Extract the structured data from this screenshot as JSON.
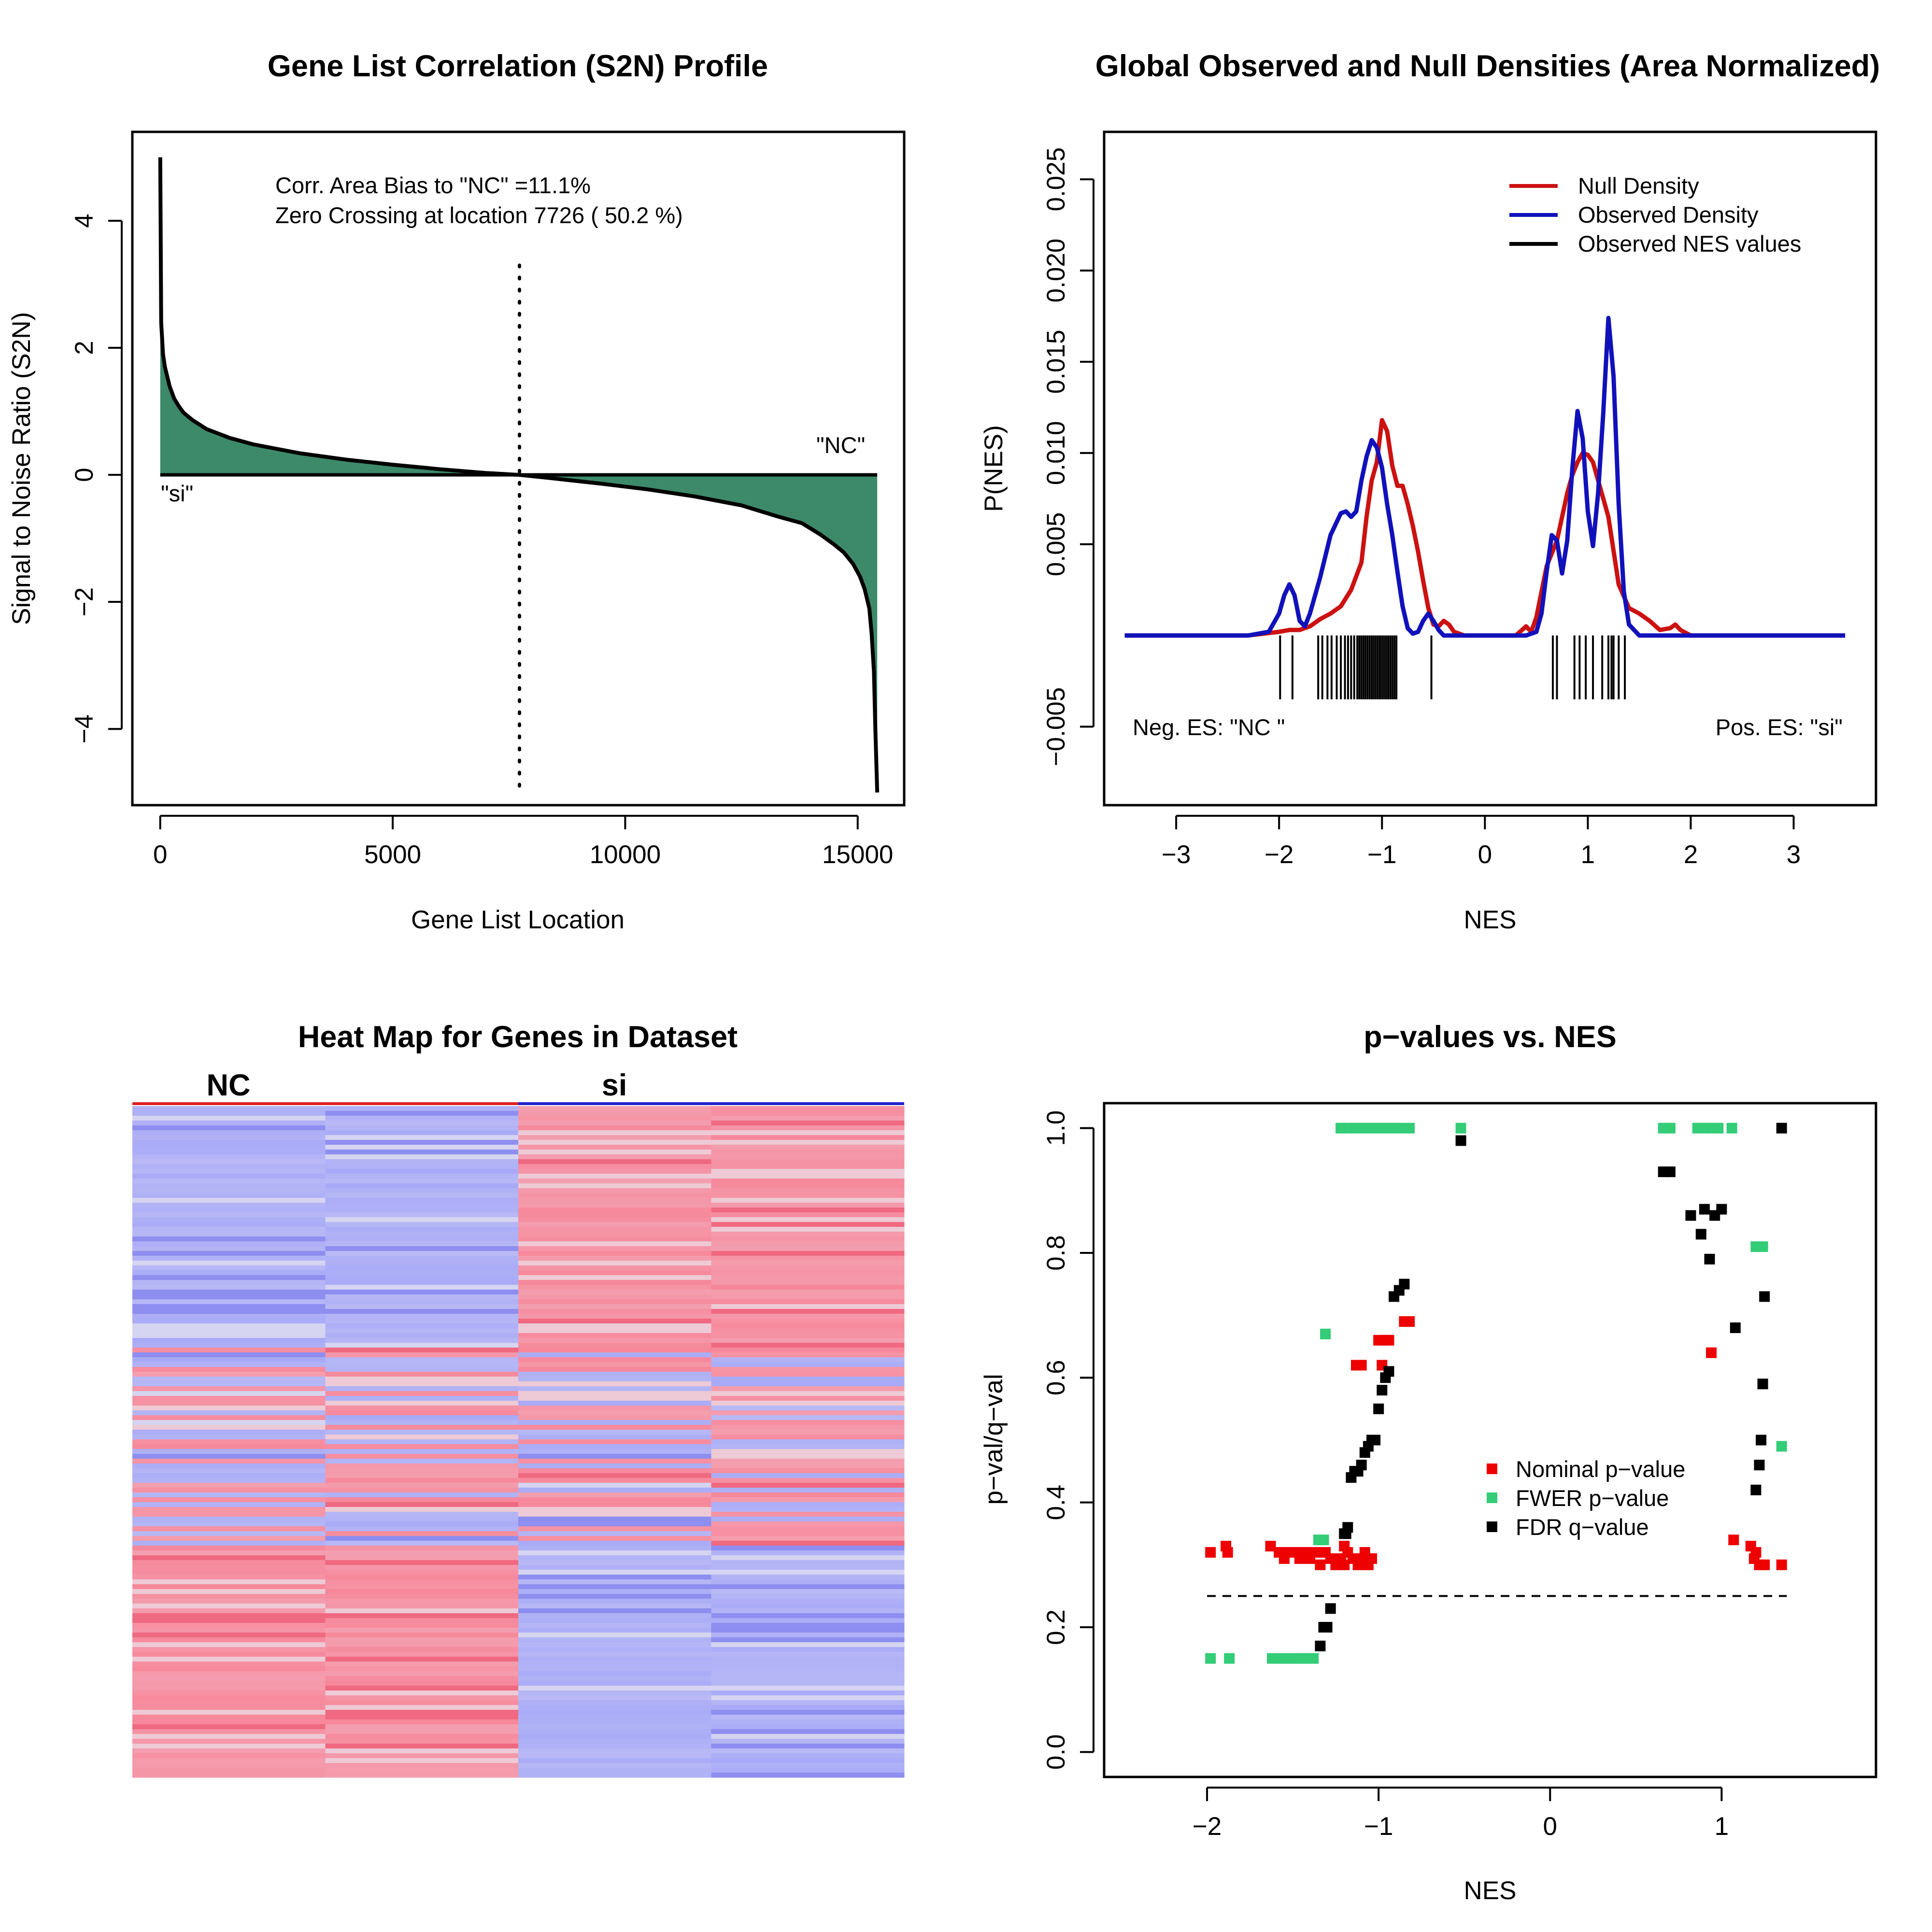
{
  "chart_data": [
    {
      "type": "area",
      "title": "Gene List Correlation (S2N) Profile",
      "xlabel": "Gene List Location",
      "ylabel": "Signal to Noise Ratio (S2N)",
      "xlim": [
        -600,
        16000
      ],
      "ylim": [
        -5.2,
        5.4
      ],
      "xticks": [
        0,
        5000,
        10000,
        15000
      ],
      "xtick_labels": [
        "0",
        "5000",
        "10000",
        "15000"
      ],
      "yticks": [
        -4,
        -2,
        0,
        2,
        4
      ],
      "ytick_labels": [
        "−4",
        "−2",
        "0",
        "2",
        "4"
      ],
      "annotations": [
        "Corr. Area Bias to \"NC\" =11.1%",
        "Zero Crossing at location  7726  ( 50.2  %)"
      ],
      "label_left": "\"si\"",
      "label_right": "\"NC\"",
      "zero_crossing": 7726,
      "fill_color": "#3d8a6b",
      "x": [
        0,
        20,
        60,
        100,
        150,
        200,
        300,
        400,
        500,
        700,
        1000,
        1500,
        2000,
        3000,
        4000,
        5000,
        6000,
        7000,
        7726,
        8500,
        9500,
        10500,
        11500,
        12500,
        13300,
        13800,
        14200,
        14500,
        14700,
        14900,
        15050,
        15150,
        15250,
        15300,
        15350,
        15380,
        15420
      ],
      "y": [
        5.0,
        2.4,
        1.9,
        1.7,
        1.55,
        1.4,
        1.2,
        1.08,
        0.98,
        0.86,
        0.72,
        0.58,
        0.48,
        0.34,
        0.24,
        0.16,
        0.09,
        0.03,
        0.0,
        -0.06,
        -0.14,
        -0.23,
        -0.34,
        -0.48,
        -0.66,
        -0.76,
        -0.94,
        -1.1,
        -1.22,
        -1.4,
        -1.6,
        -1.8,
        -2.1,
        -2.5,
        -3.1,
        -4.0,
        -5.0
      ]
    },
    {
      "type": "line",
      "title": "Global Observed and Null Densities (Area Normalized)",
      "xlabel": "NES",
      "ylabel": "P(NES)",
      "xlim": [
        -3.7,
        3.8
      ],
      "ylim": [
        -0.0093,
        0.0276
      ],
      "xticks": [
        -3,
        -2,
        -1,
        0,
        1,
        2,
        3
      ],
      "xtick_labels": [
        "−3",
        "−2",
        "−1",
        "0",
        "1",
        "2",
        "3"
      ],
      "yticks": [
        -0.005,
        0.005,
        0.01,
        0.015,
        0.02,
        0.025
      ],
      "ytick_labels": [
        "−0.005",
        "0.005",
        "0.010",
        "0.015",
        "0.020",
        "0.025"
      ],
      "label_left": "Neg. ES: \"NC \"",
      "label_right": "Pos. ES: \"si\"",
      "legend_position": "top-right",
      "series": [
        {
          "name": "Null Density",
          "color": "#cc1111",
          "x": [
            -3.5,
            -2.3,
            -2.0,
            -1.9,
            -1.8,
            -1.7,
            -1.6,
            -1.5,
            -1.4,
            -1.3,
            -1.2,
            -1.15,
            -1.1,
            -1.05,
            -1.0,
            -0.95,
            -0.9,
            -0.85,
            -0.8,
            -0.75,
            -0.7,
            -0.65,
            -0.6,
            -0.55,
            -0.5,
            -0.45,
            -0.4,
            -0.35,
            -0.3,
            -0.2,
            0.0,
            0.3,
            0.4,
            0.45,
            0.5,
            0.6,
            0.7,
            0.8,
            0.85,
            0.9,
            0.95,
            1.0,
            1.05,
            1.1,
            1.15,
            1.2,
            1.3,
            1.4,
            1.5,
            1.6,
            1.7,
            1.8,
            1.85,
            1.9,
            2.0,
            2.2,
            3.5
          ],
          "y": [
            0.0,
            0.0,
            0.0002,
            0.0003,
            0.0003,
            0.0005,
            0.0009,
            0.0012,
            0.0016,
            0.0025,
            0.004,
            0.0065,
            0.0085,
            0.0095,
            0.0118,
            0.0112,
            0.0093,
            0.0082,
            0.0082,
            0.0072,
            0.006,
            0.0046,
            0.003,
            0.0015,
            0.0006,
            0.0005,
            0.0008,
            0.0006,
            0.0002,
            0.0,
            0.0,
            0.0,
            0.0005,
            0.0002,
            0.001,
            0.0038,
            0.0052,
            0.0078,
            0.0088,
            0.0095,
            0.01,
            0.0099,
            0.0095,
            0.0085,
            0.0075,
            0.0065,
            0.0028,
            0.0015,
            0.0012,
            0.0008,
            0.0003,
            0.0004,
            0.0006,
            0.0003,
            0.0,
            0.0,
            0.0
          ]
        },
        {
          "name": "Observed Density",
          "color": "#1111bb",
          "x": [
            -3.5,
            -2.3,
            -2.1,
            -2.0,
            -1.95,
            -1.9,
            -1.85,
            -1.8,
            -1.75,
            -1.7,
            -1.6,
            -1.5,
            -1.4,
            -1.35,
            -1.3,
            -1.25,
            -1.2,
            -1.15,
            -1.1,
            -1.05,
            -1.0,
            -0.95,
            -0.9,
            -0.85,
            -0.8,
            -0.75,
            -0.7,
            -0.65,
            -0.6,
            -0.55,
            -0.5,
            -0.45,
            -0.4,
            -0.3,
            0.0,
            0.4,
            0.5,
            0.55,
            0.6,
            0.65,
            0.7,
            0.75,
            0.8,
            0.85,
            0.9,
            0.95,
            1.0,
            1.05,
            1.1,
            1.15,
            1.2,
            1.25,
            1.3,
            1.35,
            1.4,
            1.5,
            2.0,
            3.5
          ],
          "y": [
            0.0,
            0.0,
            0.0002,
            0.0012,
            0.0022,
            0.0028,
            0.0022,
            0.0008,
            0.0005,
            0.0012,
            0.0032,
            0.0055,
            0.0067,
            0.0068,
            0.0065,
            0.0068,
            0.0085,
            0.0098,
            0.0107,
            0.0103,
            0.0092,
            0.0072,
            0.0055,
            0.0035,
            0.0016,
            0.0004,
            0.0001,
            0.0002,
            0.0008,
            0.0012,
            0.0008,
            0.0003,
            0.0,
            0.0,
            0.0,
            0.0,
            0.0002,
            0.0012,
            0.0035,
            0.0055,
            0.0052,
            0.0034,
            0.0052,
            0.0092,
            0.0123,
            0.0108,
            0.0068,
            0.0049,
            0.0078,
            0.0122,
            0.0174,
            0.0142,
            0.0072,
            0.0024,
            0.0006,
            0.0,
            0.0,
            0.0
          ]
        },
        {
          "name": "Observed NES values",
          "color": "#000000",
          "rug": [
            -1.99,
            -1.87,
            -1.62,
            -1.58,
            -1.53,
            -1.49,
            -1.44,
            -1.4,
            -1.36,
            -1.33,
            -1.3,
            -1.27,
            -1.24,
            -1.22,
            -1.2,
            -1.18,
            -1.16,
            -1.14,
            -1.12,
            -1.1,
            -1.08,
            -1.06,
            -1.04,
            -1.02,
            -1.0,
            -0.98,
            -0.96,
            -0.94,
            -0.92,
            -0.9,
            -0.88,
            -0.86,
            -0.52,
            0.66,
            0.7,
            0.87,
            0.92,
            0.98,
            1.05,
            1.14,
            1.2,
            1.23,
            1.25,
            1.3,
            1.36
          ]
        }
      ]
    },
    {
      "type": "heatmap",
      "title": "Heat Map for Genes in Dataset",
      "columns": [
        {
          "label": "NC",
          "color": "#dd2222",
          "samples": 2
        },
        {
          "label": "si",
          "color": "#2222cc",
          "samples": 2
        }
      ],
      "colors": {
        "high": "#f7879a",
        "low": "#a8aaf7",
        "neutral": "#e8e6ee"
      }
    },
    {
      "type": "scatter",
      "title": "p−values vs. NES",
      "xlabel": "NES",
      "ylabel": "p−val/q−val",
      "xlim": [
        -2.6,
        1.9
      ],
      "ylim": [
        -0.04,
        1.04
      ],
      "xticks": [
        -2,
        -1,
        0,
        1
      ],
      "xtick_labels": [
        "−2",
        "−1",
        "0",
        "1"
      ],
      "yticks": [
        0.0,
        0.2,
        0.4,
        0.6,
        0.8,
        1.0
      ],
      "ytick_labels": [
        "0.0",
        "0.2",
        "0.4",
        "0.6",
        "0.8",
        "1.0"
      ],
      "threshold": 0.25,
      "legend_position": "center-right",
      "series": [
        {
          "name": "Nominal p−value",
          "color": "#ee0000",
          "x": [
            -1.98,
            -1.89,
            -1.88,
            -1.63,
            -1.58,
            -1.55,
            -1.52,
            -1.49,
            -1.46,
            -1.43,
            -1.4,
            -1.37,
            -1.34,
            -1.31,
            -1.28,
            -1.25,
            -1.22,
            -1.2,
            -1.18,
            -1.15,
            -1.12,
            -1.1,
            -1.08,
            -1.06,
            -1.04,
            -1.2,
            -1.13,
            -1.1,
            -1.0,
            -0.98,
            -0.96,
            -0.94,
            -0.85,
            -0.82,
            0.94,
            1.07,
            1.17,
            1.19,
            1.2,
            1.22,
            1.25,
            1.35
          ],
          "y": [
            0.32,
            0.33,
            0.32,
            0.33,
            0.32,
            0.31,
            0.32,
            0.32,
            0.31,
            0.32,
            0.31,
            0.32,
            0.3,
            0.32,
            0.31,
            0.3,
            0.31,
            0.3,
            0.32,
            0.31,
            0.3,
            0.31,
            0.32,
            0.3,
            0.31,
            0.33,
            0.62,
            0.62,
            0.66,
            0.62,
            0.66,
            0.66,
            0.69,
            0.69,
            0.64,
            0.34,
            0.33,
            0.31,
            0.32,
            0.3,
            0.3,
            0.3
          ],
          "marker": "square"
        },
        {
          "name": "FWER p−value",
          "color": "#33cc77",
          "x": [
            -1.98,
            -1.87,
            -1.62,
            -1.57,
            -1.53,
            -1.49,
            -1.45,
            -1.42,
            -1.38,
            -1.35,
            -1.32,
            -1.31,
            -1.22,
            -1.18,
            -1.13,
            -1.08,
            -1.03,
            -0.98,
            -0.93,
            -0.88,
            -0.82,
            -0.52,
            0.66,
            0.7,
            0.86,
            0.9,
            0.94,
            0.98,
            1.06,
            1.2,
            1.24,
            1.35
          ],
          "y": [
            0.15,
            0.15,
            0.15,
            0.15,
            0.15,
            0.15,
            0.15,
            0.15,
            0.15,
            0.34,
            0.34,
            0.67,
            1.0,
            1.0,
            1.0,
            1.0,
            1.0,
            1.0,
            1.0,
            1.0,
            1.0,
            1.0,
            1.0,
            1.0,
            1.0,
            1.0,
            1.0,
            1.0,
            1.0,
            0.81,
            0.81,
            0.49
          ],
          "marker": "square"
        },
        {
          "name": "FDR q−value",
          "color": "#000000",
          "x": [
            -1.34,
            -1.32,
            -1.3,
            -1.28,
            -1.2,
            -1.19,
            -1.18,
            -1.16,
            -1.14,
            -1.12,
            -1.1,
            -1.08,
            -1.06,
            -1.04,
            -1.02,
            -1.0,
            -0.98,
            -0.96,
            -0.94,
            -0.91,
            -0.88,
            -0.85,
            -0.52,
            0.66,
            0.7,
            0.82,
            0.88,
            0.9,
            0.93,
            0.96,
            1.0,
            1.08,
            1.2,
            1.22,
            1.23,
            1.24,
            1.25,
            1.35
          ],
          "y": [
            0.17,
            0.2,
            0.2,
            0.23,
            0.35,
            0.35,
            0.36,
            0.44,
            0.45,
            0.45,
            0.46,
            0.48,
            0.49,
            0.5,
            0.5,
            0.55,
            0.58,
            0.6,
            0.61,
            0.73,
            0.74,
            0.75,
            0.98,
            0.93,
            0.93,
            0.86,
            0.83,
            0.87,
            0.79,
            0.86,
            0.87,
            0.68,
            0.42,
            0.46,
            0.5,
            0.59,
            0.73,
            1.0
          ],
          "marker": "square"
        }
      ]
    }
  ]
}
